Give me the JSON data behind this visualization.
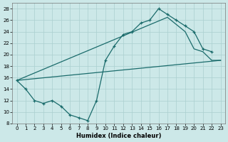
{
  "xlabel": "Humidex (Indice chaleur)",
  "bg_color": "#cce8e8",
  "grid_color": "#aacfcf",
  "line_color": "#1a6b6b",
  "xlim": [
    -0.5,
    23.5
  ],
  "ylim": [
    8,
    29
  ],
  "xticks": [
    0,
    1,
    2,
    3,
    4,
    5,
    6,
    7,
    8,
    9,
    10,
    11,
    12,
    13,
    14,
    15,
    16,
    17,
    18,
    19,
    20,
    21,
    22,
    23
  ],
  "yticks": [
    8,
    10,
    12,
    14,
    16,
    18,
    20,
    22,
    24,
    26,
    28
  ],
  "line1_x": [
    0,
    1,
    2,
    3,
    4,
    5,
    6,
    7,
    8,
    9,
    10,
    11,
    12,
    13,
    14,
    15,
    16,
    17,
    18,
    19,
    20,
    21,
    22
  ],
  "line1_y": [
    15.5,
    14,
    12,
    11.5,
    12,
    11,
    9.5,
    9,
    8.5,
    12,
    19,
    21.5,
    23.5,
    24,
    25.5,
    26,
    28,
    27,
    26,
    25,
    24,
    21,
    20.5
  ],
  "line2_x": [
    0,
    23
  ],
  "line2_y": [
    15.5,
    19
  ],
  "line3_x": [
    0,
    17,
    19,
    20,
    21,
    22,
    23
  ],
  "line3_y": [
    15.5,
    26.5,
    24,
    21,
    20.5,
    19,
    19
  ]
}
